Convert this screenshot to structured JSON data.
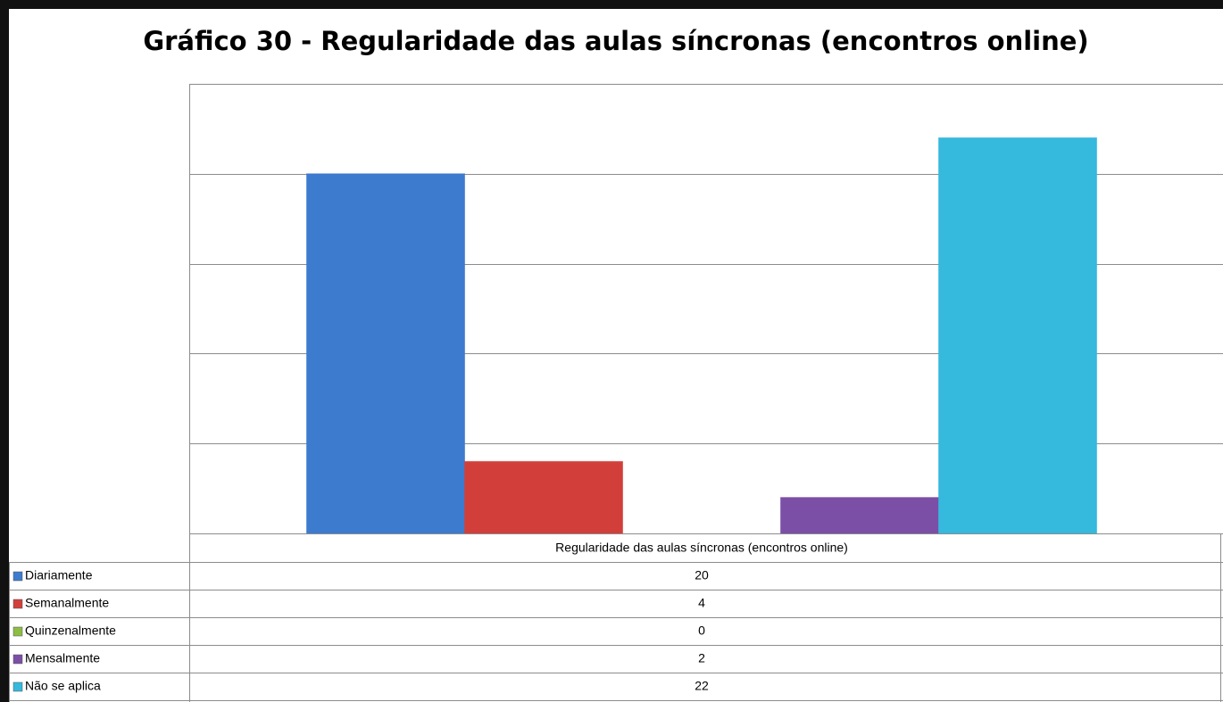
{
  "chart_data": {
    "type": "bar",
    "title": "Gráfico 30 - Regularidade das aulas síncronas (encontros online)",
    "categories": [
      "Regularidade das aulas síncronas (encontros online)"
    ],
    "series": [
      {
        "name": "Diariamente",
        "color": "#3d7bcf",
        "values": [
          20
        ]
      },
      {
        "name": "Semanalmente",
        "color": "#d23f3b",
        "values": [
          4
        ]
      },
      {
        "name": "Quinzenalmente",
        "color": "#8dbd44",
        "values": [
          0
        ]
      },
      {
        "name": "Mensalmente",
        "color": "#7c4fa6",
        "values": [
          2
        ]
      },
      {
        "name": "Não se aplica",
        "color": "#35b9dd",
        "values": [
          22
        ]
      }
    ],
    "ylim": [
      0,
      25
    ],
    "yticks": [
      0,
      5,
      10,
      15,
      20,
      25
    ],
    "grid": true
  }
}
